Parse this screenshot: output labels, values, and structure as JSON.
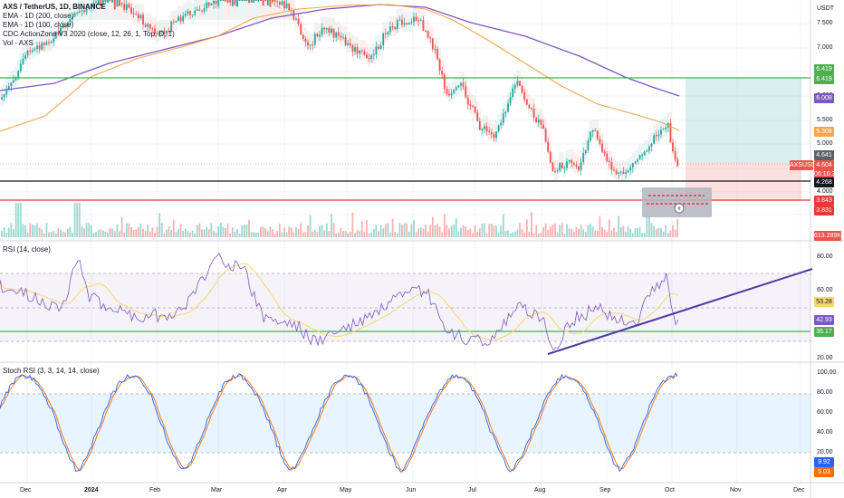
{
  "main_legend": {
    "symbol": "AXS / TetherUS, 1D, BINANCE",
    "ema200": "EMA - 1D (200, close)",
    "ema100": "EMA - 1D (100, close)",
    "cdc": "CDC ActionZone V3 2020 (close, 12, 26, 1, Top, D, 1)",
    "vol": "Vol - AXS"
  },
  "rsi_legend": "RSI (14, close)",
  "stoch_legend": "Stoch RSI (3, 3, 14, 14, close)",
  "currency": "USDT",
  "price_axis": [
    "7.500",
    "7.000",
    "6.500",
    "6.000",
    "5.500",
    "5.000",
    "4.500",
    "4.000",
    "3.500"
  ],
  "price_tags": {
    "upper_1": "6.419",
    "upper_2": "6.419",
    "ema200": "6.008",
    "ema100": "5.308",
    "last_close": "4.641",
    "ticker": "AXSUSDT",
    "price": "4.604",
    "countdown": "06:16:31",
    "black_line": "4.268",
    "red_1": "3.843",
    "red_2": "3.831",
    "volume": "613.289K"
  },
  "rsi_axis": [
    "80.00",
    "60.00",
    "40.00",
    "20.00"
  ],
  "rsi_tags": {
    "ma": "53.28",
    "rsi": "42.93",
    "line": "36.17"
  },
  "stoch_axis": [
    "100.00",
    "80.00",
    "60.00",
    "40.00",
    "20.00",
    "0.00"
  ],
  "stoch_tags": {
    "k": "9.92",
    "d": "5.03"
  },
  "x_axis": [
    {
      "label": "Dec",
      "bold": false
    },
    {
      "label": "2024",
      "bold": true
    },
    {
      "label": "Feb",
      "bold": false
    },
    {
      "label": "Mar",
      "bold": false
    },
    {
      "label": "Apr",
      "bold": false
    },
    {
      "label": "May",
      "bold": false
    },
    {
      "label": "Jun",
      "bold": false
    },
    {
      "label": "Jul",
      "bold": false
    },
    {
      "label": "Aug",
      "bold": false
    },
    {
      "label": "Sep",
      "bold": false
    },
    {
      "label": "Oct",
      "bold": false
    },
    {
      "label": "Nov",
      "bold": false
    },
    {
      "label": "Dec",
      "bold": false
    }
  ],
  "colors": {
    "up": "#26a69a",
    "down": "#ef5350",
    "ema200": "#7e57c2",
    "ema100": "#f7a44f",
    "green_line": "#4caf50",
    "red_line": "#e53935",
    "rsi_line": "#7e57c2",
    "rsi_ma": "#f5d76e",
    "stoch_k": "#2962ff",
    "stoch_d": "#ff6d00"
  }
}
